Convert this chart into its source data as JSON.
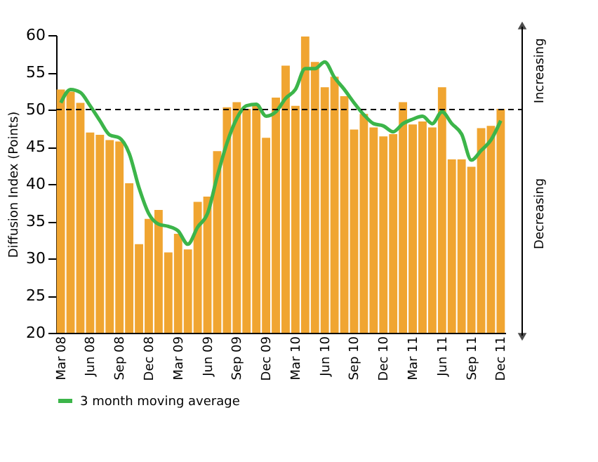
{
  "chart_data": {
    "type": "bar",
    "ylabel": "Diffusion Index (Points)",
    "categories": [
      "Mar 08",
      null,
      null,
      "Jun 08",
      null,
      null,
      "Sep 08",
      null,
      null,
      "Dec 08",
      null,
      null,
      "Mar 09",
      null,
      null,
      "Jun 09",
      null,
      null,
      "Sep 09",
      null,
      null,
      "Dec 09",
      null,
      null,
      "Mar 10",
      null,
      null,
      "Jun 10",
      null,
      null,
      "Sep 10",
      null,
      null,
      "Dec 10",
      null,
      null,
      "Mar 11",
      null,
      null,
      "Jun 11",
      null,
      null,
      "Sep 11",
      null,
      null,
      "Dec 11"
    ],
    "series": [
      {
        "color": "#f0a531",
        "values": [
          52.7,
          52.4,
          50.9,
          46.9,
          46.6,
          45.9,
          45.7,
          40.1,
          31.9,
          35.3,
          36.5,
          30.8,
          33.3,
          31.2,
          37.6,
          38.3,
          44.4,
          50.3,
          51.0,
          50.1,
          50.6,
          46.2,
          51.6,
          55.9,
          50.5,
          59.8,
          56.4,
          53.0,
          54.4,
          51.8,
          47.3,
          49.4,
          47.6,
          46.4,
          46.7,
          51.0,
          48.0,
          48.4,
          47.6,
          53.0,
          43.3,
          43.3,
          42.3,
          47.5,
          47.8,
          50.1
        ]
      },
      {
        "type": "line",
        "name": "3 month moving average",
        "color": "#3cb54a",
        "values": [
          50.9,
          52.7,
          52.3,
          50.5,
          48.5,
          46.6,
          46.2,
          44.1,
          39.5,
          36.0,
          34.6,
          34.3,
          33.7,
          31.9,
          34.2,
          36.0,
          41.0,
          45.5,
          48.8,
          50.5,
          50.7,
          49.1,
          49.7,
          51.5,
          52.7,
          55.5,
          55.5,
          56.4,
          54.3,
          52.7,
          50.9,
          49.3,
          48.1,
          47.8,
          47.0,
          48.1,
          48.7,
          49.1,
          48.1,
          49.7,
          48.1,
          46.7,
          43.2,
          44.5,
          45.9,
          48.5
        ]
      }
    ],
    "ylim": [
      20,
      60
    ],
    "yticks": [
      20,
      25,
      30,
      35,
      40,
      45,
      50,
      55,
      60
    ],
    "legend": "bottom",
    "ref_lines": [
      {
        "axis": "y",
        "value": 50,
        "line_style": "dashed",
        "color": "#000000"
      }
    ],
    "annotations": [
      "Increasing",
      "Decreasing"
    ]
  }
}
